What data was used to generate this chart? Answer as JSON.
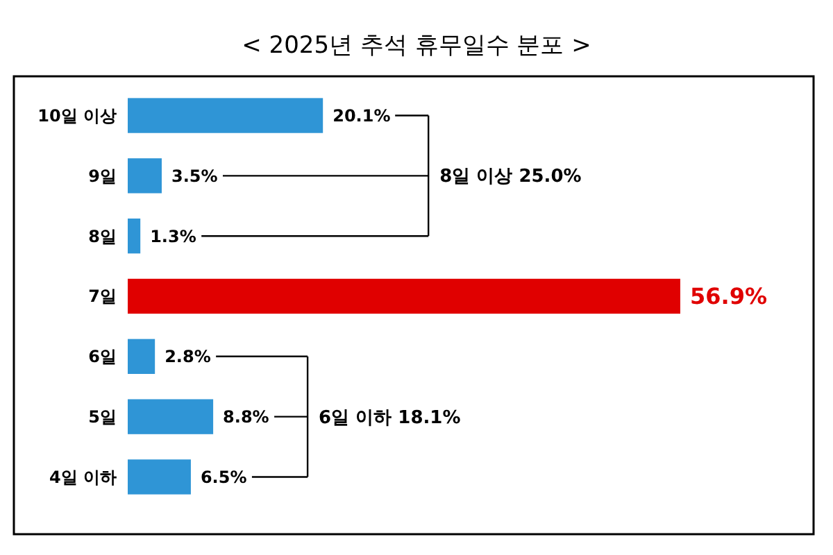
{
  "chart_data": {
    "type": "bar",
    "orientation": "horizontal",
    "title": "< 2025년 추석 휴무일수 분포 >",
    "categories": [
      "10일 이상",
      "9일",
      "8일",
      "7일",
      "6일",
      "5일",
      "4일 이하"
    ],
    "values": [
      20.1,
      3.5,
      1.3,
      56.9,
      2.8,
      8.8,
      6.5
    ],
    "colors": [
      "#2f95d6",
      "#2f95d6",
      "#2f95d6",
      "#e00000",
      "#2f95d6",
      "#2f95d6",
      "#2f95d6"
    ],
    "value_labels": [
      "20.1%",
      "3.5%",
      "1.3%",
      "56.9%",
      "2.8%",
      "8.8%",
      "6.5%"
    ],
    "annotations": [
      "8일 이상 25.0%",
      "6일 이하 18.1%"
    ]
  }
}
